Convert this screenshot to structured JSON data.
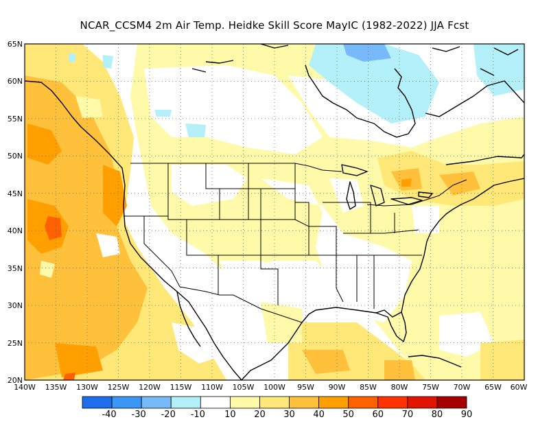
{
  "title": "NCAR_CCSM4  2m Air Temp. Heidke Skill Score MayIC (1982-2022) JJA Fcst",
  "map": {
    "lat_labels": [
      "65N",
      "60N",
      "55N",
      "50N",
      "45N",
      "40N",
      "35N",
      "30N",
      "25N",
      "20N"
    ],
    "lon_labels": [
      "140W",
      "135W",
      "130W",
      "125W",
      "120W",
      "115W",
      "110W",
      "105W",
      "100W",
      "95W",
      "90W",
      "85W",
      "80W",
      "75W",
      "70W",
      "65W",
      "60W"
    ],
    "lat_range": [
      20,
      65
    ],
    "lon_range": [
      -140,
      -60
    ],
    "grid": "dotted"
  },
  "colorbar": {
    "labels": [
      "-40",
      "-30",
      "-20",
      "-10",
      "10",
      "20",
      "30",
      "40",
      "50",
      "60",
      "70",
      "80",
      "90"
    ],
    "colors": [
      "#1e6eeb",
      "#3c96f5",
      "#78b9fa",
      "#b4f0fa",
      "#ffffff",
      "#fffaaa",
      "#ffe878",
      "#ffc03c",
      "#ffa000",
      "#ff6000",
      "#ff3200",
      "#e11400",
      "#a50000"
    ]
  }
}
